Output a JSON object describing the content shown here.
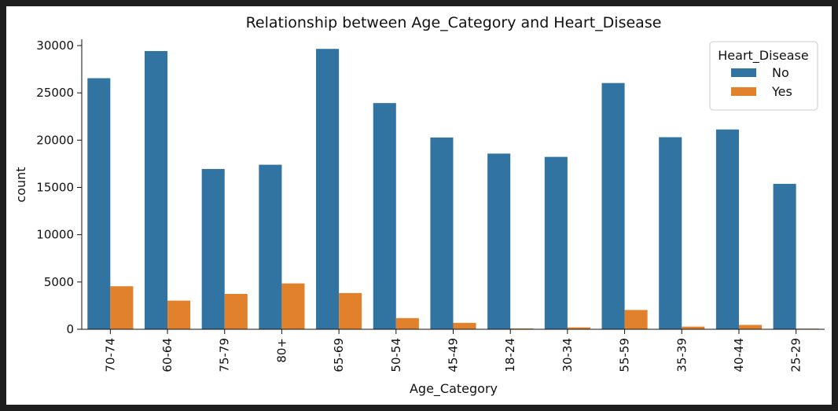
{
  "chart_data": {
    "type": "bar",
    "title": "Relationship between Age_Category and Heart_Disease",
    "xlabel": "Age_Category",
    "ylabel": "count",
    "ylim": [
      0,
      30000
    ],
    "yticks": [
      0,
      5000,
      10000,
      15000,
      20000,
      25000,
      30000
    ],
    "categories": [
      "70-74",
      "60-64",
      "75-79",
      "80+",
      "65-69",
      "50-54",
      "45-49",
      "18-24",
      "30-34",
      "55-59",
      "35-39",
      "40-44",
      "25-29"
    ],
    "series": [
      {
        "name": "No",
        "color": "#3274a1",
        "values": [
          26550,
          29420,
          16950,
          17400,
          29650,
          23920,
          20280,
          18580,
          18230,
          26040,
          20310,
          21130,
          15380
        ]
      },
      {
        "name": "Yes",
        "color": "#e1812c",
        "values": [
          4550,
          3030,
          3740,
          4850,
          3830,
          1180,
          680,
          90,
          200,
          2040,
          280,
          460,
          70
        ]
      }
    ],
    "legend": {
      "title": "Heart_Disease",
      "position": "top-right"
    },
    "grid": false
  }
}
